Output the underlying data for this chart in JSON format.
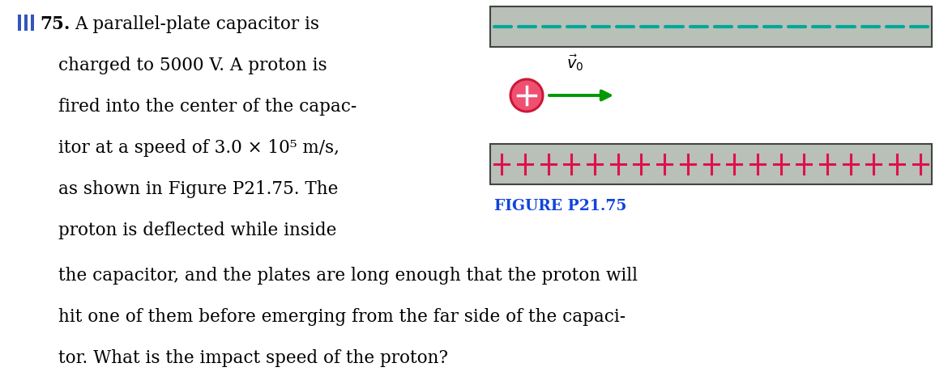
{
  "fig_width": 11.7,
  "fig_height": 4.7,
  "dpi": 100,
  "plate_color": "#b8c0b8",
  "plate_border_color": "#444444",
  "dash_color": "#00a898",
  "dash_n": 18,
  "plus_color": "#e0104a",
  "plus_n": 19,
  "proton_face_color": "#f05070",
  "proton_edge_color": "#cc1838",
  "arrow_color": "#009900",
  "v0_label": "$\\vec{v}_0$",
  "caption": "FIGURE P21.75",
  "caption_color": "#1144dd",
  "caption_fontsize": 13.5,
  "text_fontsize": 15.5,
  "bar_color": "#3355bb",
  "line1_left": "75.",
  "line1_right": "A parallel-plate capacitor is",
  "line2": "charged to 5000 V. A proton is",
  "line3": "fired into the center of the capac-",
  "line4": "itor at a speed of 3.0 × 10⁵ m/s,",
  "line5": "as shown in Figure P21.75. The",
  "line6": "proton is deflected while inside",
  "line7": "the capacitor, and the plates are long enough that the proton will",
  "line8": "hit one of them before emerging from the far side of the capaci-",
  "line9": "tor. What is the impact speed of the proton?"
}
